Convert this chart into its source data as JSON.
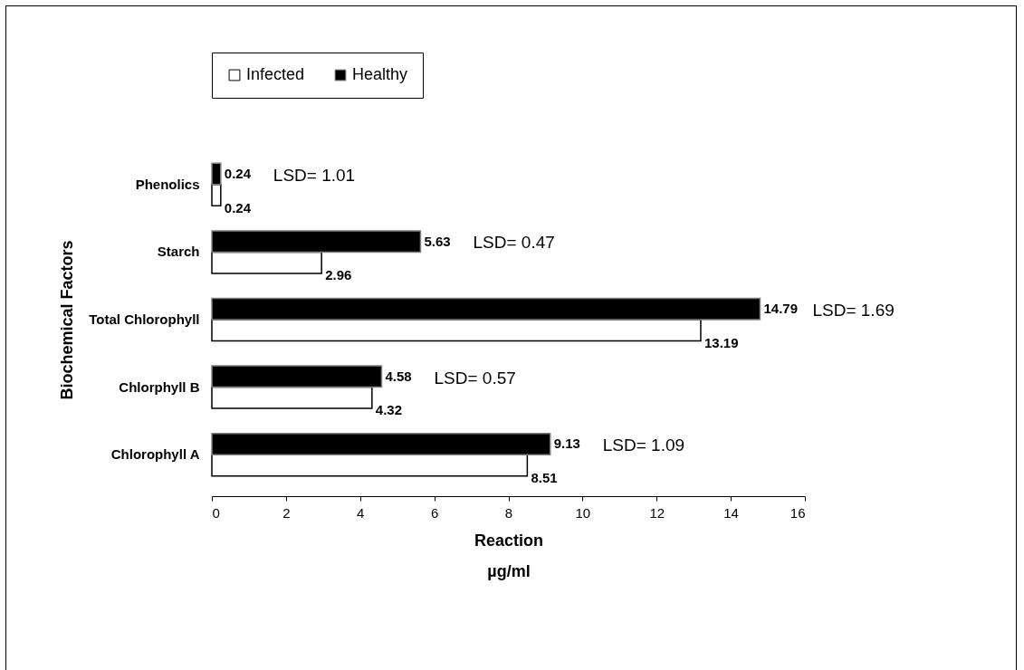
{
  "chart_data": {
    "type": "bar",
    "orientation": "horizontal",
    "xlabel": "Reaction\nµg/ml",
    "ylabel": "Biochemical Factors",
    "categories": [
      "Phenolics",
      "Starch",
      "Total Chlorophyll",
      "Chlorphyll B",
      "Chlorophyll A"
    ],
    "series": [
      {
        "name": "Infected",
        "color": "#ffffff",
        "values": [
          0.24,
          2.96,
          13.19,
          4.32,
          8.51
        ]
      },
      {
        "name": "Healthy",
        "color": "#000000",
        "values": [
          0.24,
          5.63,
          14.79,
          4.58,
          9.13
        ]
      }
    ],
    "xlim": [
      0,
      16
    ],
    "xticks": [
      0,
      2,
      4,
      6,
      8,
      10,
      12,
      14,
      16
    ],
    "grid": false,
    "legend": "top",
    "data_labels": true,
    "annotations": [
      "LSD= 1.01",
      "LSD= 0.47",
      "LSD= 1.69",
      "LSD= 0.57",
      "LSD= 1.09"
    ]
  }
}
